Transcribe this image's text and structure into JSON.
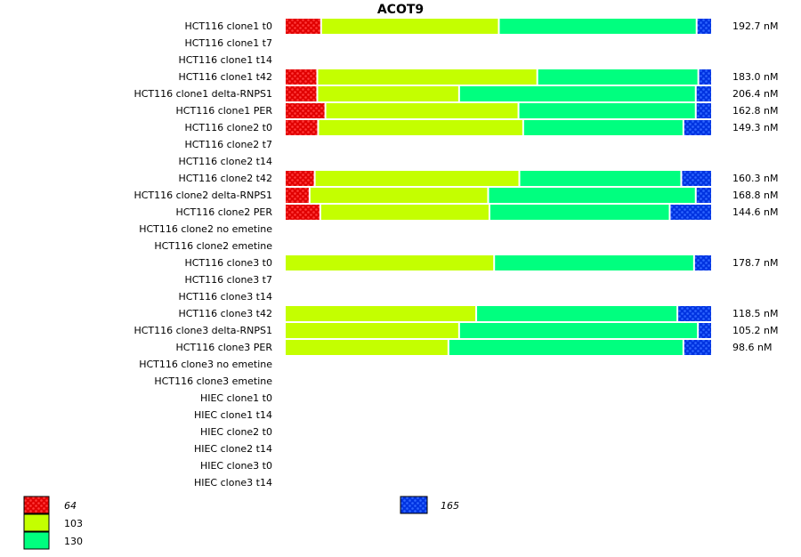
{
  "chart_data": {
    "type": "bar",
    "orientation": "horizontal-stacked-percent",
    "title": "ACOT9",
    "colors": {
      "64": "#e00000",
      "103": "#c4ff00",
      "130": "#00ff7f",
      "165": "#0033e0"
    },
    "legend": [
      {
        "name": "64",
        "color": "#e00000",
        "patterned": true,
        "italic": true
      },
      {
        "name": "103",
        "color": "#c4ff00",
        "patterned": false,
        "italic": false
      },
      {
        "name": "130",
        "color": "#00ff7f",
        "patterned": false,
        "italic": false
      },
      {
        "name": "165",
        "color": "#0033e0",
        "patterned": true,
        "italic": true
      }
    ],
    "legend_placement": "bottom",
    "categories": [
      "HCT116 clone1 t0",
      "HCT116 clone1 t7",
      "HCT116 clone1 t14",
      "HCT116 clone1 t42",
      "HCT116 clone1 delta-RNPS1",
      "HCT116 clone1 PER",
      "HCT116 clone2 t0",
      "HCT116 clone2 t7",
      "HCT116 clone2 t14",
      "HCT116 clone2 t42",
      "HCT116 clone2 delta-RNPS1",
      "HCT116 clone2 PER",
      "HCT116 clone2 no emetine",
      "HCT116 clone2 emetine",
      "HCT116 clone3 t0",
      "HCT116 clone3 t7",
      "HCT116 clone3 t14",
      "HCT116 clone3 t42",
      "HCT116 clone3 delta-RNPS1",
      "HCT116 clone3 PER",
      "HCT116 clone3 no emetine",
      "HCT116 clone3 emetine",
      "HIEC clone1 t0",
      "HIEC clone1 t14",
      "HIEC clone2 t0",
      "HIEC clone2 t14",
      "HIEC clone3 t0",
      "HIEC clone3 t14"
    ],
    "series": [
      {
        "name": "64",
        "values": [
          8.5,
          null,
          null,
          7.6,
          7.6,
          9.5,
          7.8,
          null,
          null,
          7.0,
          5.8,
          8.3,
          null,
          null,
          0,
          null,
          null,
          0,
          0,
          0,
          null,
          null,
          null,
          null,
          null,
          null,
          null,
          null
        ]
      },
      {
        "name": "103",
        "values": [
          41.6,
          null,
          null,
          51.5,
          33.2,
          45.2,
          48.0,
          null,
          null,
          47.9,
          41.8,
          39.6,
          null,
          null,
          49.0,
          null,
          null,
          44.8,
          40.8,
          38.3,
          null,
          null,
          null,
          null,
          null,
          null,
          null,
          null
        ]
      },
      {
        "name": "130",
        "values": [
          46.3,
          null,
          null,
          37.7,
          55.4,
          41.5,
          37.5,
          null,
          null,
          37.9,
          48.6,
          42.2,
          null,
          null,
          46.8,
          null,
          null,
          47.1,
          55.9,
          55.0,
          null,
          null,
          null,
          null,
          null,
          null,
          null,
          null
        ]
      },
      {
        "name": "165",
        "values": [
          3.6,
          null,
          null,
          3.2,
          3.8,
          3.8,
          6.7,
          null,
          null,
          7.2,
          3.8,
          9.9,
          null,
          null,
          4.2,
          null,
          null,
          8.1,
          3.3,
          6.7,
          null,
          null,
          null,
          null,
          null,
          null,
          null,
          null
        ]
      }
    ],
    "totals": [
      "192.7 nM",
      "",
      "",
      "183.0 nM",
      "206.4 nM",
      "162.8 nM",
      "149.3 nM",
      "",
      "",
      "160.3 nM",
      "168.8 nM",
      "144.6 nM",
      "",
      "",
      "178.7 nM",
      "",
      "",
      "118.5 nM",
      "105.2 nM",
      "98.6 nM",
      "",
      "",
      "",
      "",
      "",
      "",
      "",
      ""
    ],
    "xlim": [
      0,
      100
    ],
    "grid": false
  }
}
